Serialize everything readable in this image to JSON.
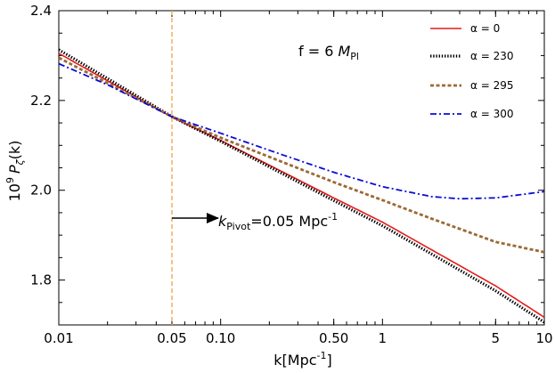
{
  "chart_data": {
    "type": "line",
    "xscale": "log",
    "xlim": [
      0.01,
      10
    ],
    "ylim": [
      1.7,
      2.4
    ],
    "xlabel": "k[Mpc",
    "xlabel_sup": "-1",
    "xlabel_close": "]",
    "ylabel_prefix": "10",
    "ylabel_sup": "9",
    "ylabel_P": "P",
    "ylabel_sub": "ζ",
    "ylabel_suffix": "(k)",
    "xticks": [
      {
        "value": 0.01,
        "label": "0.01"
      },
      {
        "value": 0.05,
        "label": "0.05"
      },
      {
        "value": 0.1,
        "label": "0.10"
      },
      {
        "value": 0.5,
        "label": "0.50"
      },
      {
        "value": 1,
        "label": "1"
      },
      {
        "value": 5,
        "label": "5"
      },
      {
        "value": 10,
        "label": "10"
      }
    ],
    "yticks": [
      {
        "value": 1.8,
        "label": "1.8"
      },
      {
        "value": 2.0,
        "label": "2.0"
      },
      {
        "value": 2.2,
        "label": "2.2"
      },
      {
        "value": 2.4,
        "label": "2.4"
      }
    ],
    "annotation_f": {
      "prefix": "f = 6 ",
      "M": "M",
      "sub": "Pl"
    },
    "annotation_pivot": {
      "k": "k",
      "sub": "Pivot",
      "mid": "=0.05 Mpc",
      "sup": "-1"
    },
    "pivot_line_x": 0.05,
    "pivot_line_color": "#f4a94e",
    "series": [
      {
        "name": "α = 0",
        "color": "#e41a1c",
        "dash": "solid",
        "x": [
          0.01,
          0.05,
          0.1,
          0.5,
          1,
          5,
          10
        ],
        "values": [
          2.305,
          2.163,
          2.111,
          1.983,
          1.929,
          1.787,
          1.717
        ]
      },
      {
        "name": "α = 230",
        "color": "#000000",
        "dash": "dotted",
        "x": [
          0.01,
          0.05,
          0.1,
          0.5,
          1,
          5,
          10
        ],
        "values": [
          2.313,
          2.164,
          2.109,
          1.977,
          1.921,
          1.776,
          1.706
        ]
      },
      {
        "name": "α = 295",
        "color": "#9b6a35",
        "dash": "dashed",
        "x": [
          0.01,
          0.05,
          0.1,
          0.5,
          1,
          2,
          5,
          10
        ],
        "values": [
          2.295,
          2.164,
          2.117,
          2.018,
          1.978,
          1.937,
          1.885,
          1.862
        ]
      },
      {
        "name": "α = 300",
        "color": "#0a0ad8",
        "dash": "dashdot",
        "x": [
          0.01,
          0.02,
          0.05,
          0.1,
          0.2,
          0.5,
          1,
          2,
          3,
          5,
          10
        ],
        "values": [
          2.282,
          2.235,
          2.164,
          2.127,
          2.089,
          2.04,
          2.008,
          1.986,
          1.981,
          1.983,
          1.997
        ]
      }
    ]
  }
}
